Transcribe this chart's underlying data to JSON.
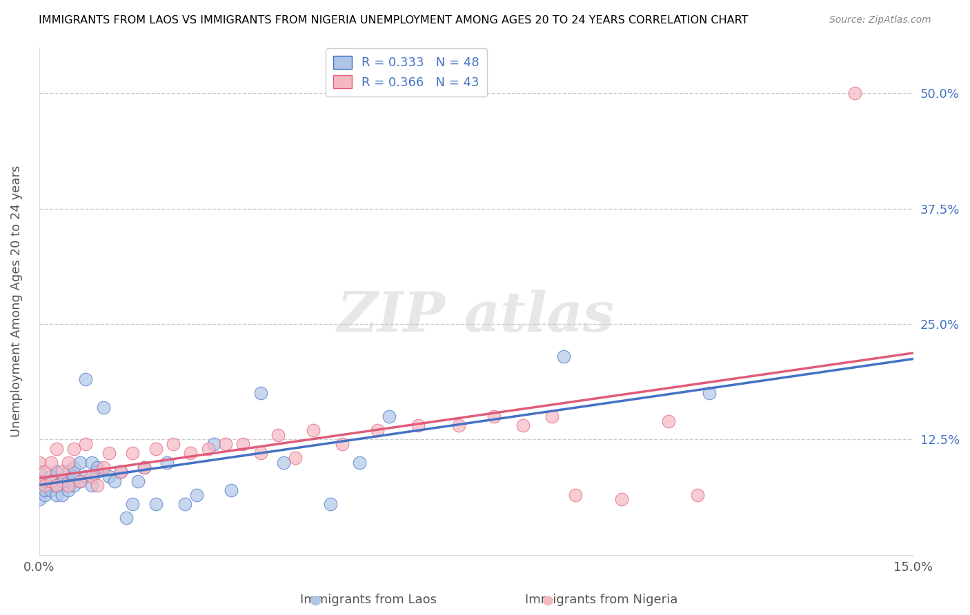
{
  "title": "IMMIGRANTS FROM LAOS VS IMMIGRANTS FROM NIGERIA UNEMPLOYMENT AMONG AGES 20 TO 24 YEARS CORRELATION CHART",
  "source": "Source: ZipAtlas.com",
  "ylabel": "Unemployment Among Ages 20 to 24 years",
  "xlim": [
    0.0,
    0.15
  ],
  "ylim": [
    0.0,
    0.55
  ],
  "xtick_labels": [
    "0.0%",
    "15.0%"
  ],
  "ytick_labels": [
    "12.5%",
    "25.0%",
    "37.5%",
    "50.0%"
  ],
  "ytick_values": [
    0.125,
    0.25,
    0.375,
    0.5
  ],
  "xtick_values": [
    0.0,
    0.15
  ],
  "laos_color": "#aec6e8",
  "nigeria_color": "#f4b8c1",
  "laos_line_color": "#4472c4",
  "nigeria_line_color": "#e05c7a",
  "laos_R": 0.333,
  "laos_N": 48,
  "nigeria_R": 0.366,
  "nigeria_N": 43,
  "legend_label_laos": "Immigrants from Laos",
  "legend_label_nigeria": "Immigrants from Nigeria",
  "laos_x": [
    0.0,
    0.0,
    0.0,
    0.001,
    0.001,
    0.001,
    0.002,
    0.002,
    0.003,
    0.003,
    0.003,
    0.004,
    0.004,
    0.005,
    0.005,
    0.005,
    0.006,
    0.006,
    0.006,
    0.007,
    0.007,
    0.008,
    0.008,
    0.009,
    0.009,
    0.01,
    0.01,
    0.011,
    0.012,
    0.013,
    0.014,
    0.015,
    0.016,
    0.017,
    0.018,
    0.02,
    0.022,
    0.025,
    0.027,
    0.03,
    0.033,
    0.038,
    0.042,
    0.05,
    0.055,
    0.06,
    0.09,
    0.115
  ],
  "laos_y": [
    0.06,
    0.075,
    0.09,
    0.065,
    0.07,
    0.08,
    0.07,
    0.085,
    0.065,
    0.075,
    0.09,
    0.065,
    0.08,
    0.07,
    0.08,
    0.09,
    0.075,
    0.085,
    0.095,
    0.08,
    0.1,
    0.19,
    0.085,
    0.075,
    0.1,
    0.09,
    0.095,
    0.16,
    0.085,
    0.08,
    0.09,
    0.04,
    0.055,
    0.08,
    0.095,
    0.055,
    0.1,
    0.055,
    0.065,
    0.12,
    0.07,
    0.175,
    0.1,
    0.055,
    0.1,
    0.15,
    0.215,
    0.175
  ],
  "nigeria_x": [
    0.0,
    0.0,
    0.001,
    0.001,
    0.002,
    0.002,
    0.003,
    0.003,
    0.004,
    0.005,
    0.005,
    0.006,
    0.007,
    0.008,
    0.009,
    0.01,
    0.011,
    0.012,
    0.014,
    0.016,
    0.018,
    0.02,
    0.023,
    0.026,
    0.029,
    0.032,
    0.035,
    0.038,
    0.041,
    0.044,
    0.047,
    0.052,
    0.058,
    0.065,
    0.072,
    0.078,
    0.083,
    0.088,
    0.092,
    0.1,
    0.108,
    0.113,
    0.14
  ],
  "nigeria_y": [
    0.08,
    0.1,
    0.075,
    0.09,
    0.08,
    0.1,
    0.075,
    0.115,
    0.09,
    0.075,
    0.1,
    0.115,
    0.08,
    0.12,
    0.085,
    0.075,
    0.095,
    0.11,
    0.09,
    0.11,
    0.095,
    0.115,
    0.12,
    0.11,
    0.115,
    0.12,
    0.12,
    0.11,
    0.13,
    0.105,
    0.135,
    0.12,
    0.135,
    0.14,
    0.14,
    0.15,
    0.14,
    0.15,
    0.065,
    0.06,
    0.145,
    0.065,
    0.5
  ]
}
